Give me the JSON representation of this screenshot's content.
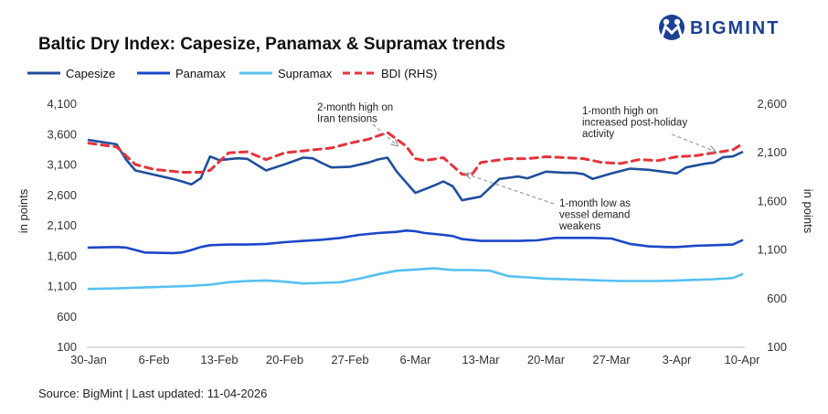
{
  "logo": {
    "text": "BIGMINT",
    "color": "#1c3f94"
  },
  "source": "Source: BigMint | Last updated: 11-04-2026",
  "chart_data": {
    "type": "line",
    "title": "Baltic Dry Index: Capesize, Panamax & Supramax trends",
    "ylabel_left": "in points",
    "ylabel_right": "in points",
    "xlabel": "",
    "left_axis": {
      "range": [
        100,
        4100
      ],
      "ticks": [
        "100",
        "600",
        "1,100",
        "1,600",
        "2,100",
        "2,600",
        "3,100",
        "3,600",
        "4,100"
      ],
      "tick_values": [
        100,
        600,
        1100,
        1600,
        2100,
        2600,
        3100,
        3600,
        4100
      ]
    },
    "right_axis": {
      "range": [
        100,
        2600
      ],
      "ticks": [
        "100",
        "600",
        "1,100",
        "1,600",
        "2,100",
        "2,600"
      ],
      "tick_values": [
        100,
        600,
        1100,
        1600,
        2100,
        2600
      ]
    },
    "x_range": [
      0,
      70
    ],
    "x_ticks": [
      {
        "label": "30-Jan",
        "x": 0
      },
      {
        "label": "6-Feb",
        "x": 7
      },
      {
        "label": "13-Feb",
        "x": 14
      },
      {
        "label": "20-Feb",
        "x": 21
      },
      {
        "label": "27-Feb",
        "x": 28
      },
      {
        "label": "6-Mar",
        "x": 35
      },
      {
        "label": "13-Mar",
        "x": 42
      },
      {
        "label": "20-Mar",
        "x": 49
      },
      {
        "label": "27-Mar",
        "x": 56
      },
      {
        "label": "3-Apr",
        "x": 63
      },
      {
        "label": "10-Apr",
        "x": 70
      }
    ],
    "series": [
      {
        "name": "Capesize",
        "axis": "left",
        "color": "#1f4e9c",
        "dash": false,
        "x": [
          0,
          3,
          4,
          5,
          7,
          9,
          10,
          11,
          12,
          13,
          14,
          16,
          17,
          19,
          21,
          23,
          24,
          25,
          26,
          28,
          30,
          31,
          32,
          33,
          35,
          37,
          38,
          39,
          40,
          42,
          44,
          45,
          46,
          47,
          49,
          51,
          52,
          53,
          54,
          56,
          58,
          59,
          60,
          63,
          64,
          65,
          66,
          67,
          68,
          69,
          70
        ],
        "values": [
          3510,
          3440,
          3190,
          3010,
          2940,
          2870,
          2830,
          2780,
          2880,
          3240,
          3180,
          3210,
          3200,
          3010,
          3110,
          3220,
          3210,
          3130,
          3060,
          3070,
          3140,
          3190,
          3220,
          2990,
          2640,
          2760,
          2830,
          2750,
          2520,
          2580,
          2870,
          2890,
          2910,
          2880,
          2990,
          2970,
          2970,
          2950,
          2870,
          2960,
          3040,
          3030,
          3020,
          2960,
          3060,
          3090,
          3120,
          3140,
          3230,
          3240,
          3310
        ]
      },
      {
        "name": "Panamax",
        "axis": "left",
        "color": "#1b47c9",
        "dash": false,
        "x": [
          0,
          3,
          4,
          6,
          9,
          10,
          11,
          12,
          13,
          15,
          17,
          19,
          21,
          23,
          25,
          27,
          29,
          31,
          33,
          34,
          35,
          36,
          38,
          39,
          40,
          42,
          44,
          46,
          48,
          50,
          52,
          54,
          56,
          58,
          60,
          62,
          63,
          65,
          67,
          69,
          70
        ],
        "values": [
          1740,
          1750,
          1740,
          1660,
          1650,
          1660,
          1700,
          1750,
          1780,
          1790,
          1790,
          1800,
          1830,
          1850,
          1870,
          1900,
          1950,
          1980,
          2000,
          2020,
          2010,
          1980,
          1950,
          1930,
          1880,
          1850,
          1850,
          1850,
          1860,
          1900,
          1900,
          1900,
          1890,
          1800,
          1760,
          1750,
          1750,
          1770,
          1780,
          1790,
          1860
        ]
      },
      {
        "name": "Supramax",
        "axis": "left",
        "color": "#56c0f0",
        "dash": false,
        "x": [
          0,
          3,
          5,
          7,
          9,
          11,
          13,
          15,
          17,
          19,
          21,
          23,
          25,
          27,
          29,
          31,
          33,
          35,
          37,
          39,
          41,
          43,
          45,
          47,
          49,
          51,
          53,
          55,
          57,
          59,
          61,
          63,
          65,
          67,
          69,
          70
        ],
        "values": [
          1060,
          1070,
          1080,
          1090,
          1100,
          1110,
          1130,
          1170,
          1190,
          1200,
          1180,
          1150,
          1160,
          1170,
          1230,
          1300,
          1360,
          1380,
          1400,
          1370,
          1370,
          1360,
          1270,
          1250,
          1230,
          1220,
          1210,
          1200,
          1190,
          1190,
          1190,
          1200,
          1210,
          1220,
          1240,
          1300
        ]
      },
      {
        "name": "BDI (RHS)",
        "axis": "right",
        "color": "#e3343b",
        "dash": true,
        "x": [
          0,
          3,
          5,
          7,
          10,
          12,
          13,
          15,
          17,
          19,
          21,
          23,
          24,
          26,
          28,
          30,
          32,
          34,
          35,
          36,
          38,
          40,
          41,
          42,
          45,
          47,
          49,
          51,
          53,
          55,
          57,
          59,
          61,
          63,
          65,
          67,
          69,
          70
        ],
        "values": [
          2200,
          2160,
          1980,
          1930,
          1900,
          1900,
          1920,
          2100,
          2110,
          2030,
          2100,
          2120,
          2130,
          2150,
          2200,
          2240,
          2310,
          2170,
          2040,
          2020,
          2050,
          1880,
          1870,
          2000,
          2040,
          2040,
          2060,
          2050,
          2040,
          2000,
          1990,
          2030,
          2020,
          2060,
          2070,
          2100,
          2130,
          2190
        ]
      }
    ],
    "annotations": [
      {
        "lines": [
          "2-month high on",
          "Iran tensions"
        ],
        "x": 33,
        "y": 2180,
        "axis": "right"
      },
      {
        "lines": [
          "1-month low as",
          "vessel demand",
          "weakens"
        ],
        "x": 40.5,
        "y": 1880,
        "axis": "right"
      },
      {
        "lines": [
          "1-month high on",
          "increased post-holiday",
          "activity"
        ],
        "x": 67,
        "y": 2120,
        "axis": "right"
      }
    ]
  }
}
